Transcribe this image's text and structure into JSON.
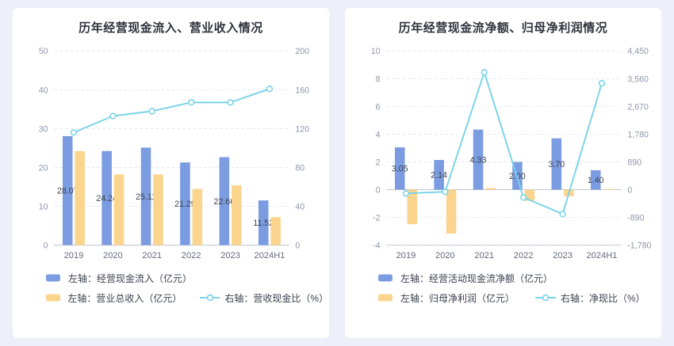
{
  "page": {
    "background": "#edf0f8",
    "card_background": "#ffffff"
  },
  "chart_data": [
    {
      "type": "bar",
      "title": "历年经营现金流入、营业收入情况",
      "categories": [
        "2019",
        "2020",
        "2021",
        "2022",
        "2023",
        "2024H1"
      ],
      "left_axis": {
        "ticks": [
          "0",
          "10",
          "20",
          "30",
          "40",
          "50"
        ]
      },
      "right_axis": {
        "ticks": [
          "0",
          "40",
          "80",
          "120",
          "160",
          "200"
        ]
      },
      "grid": "dashed-horizontal",
      "legend_position": "bottom",
      "legend_rows": [
        [
          0
        ],
        [
          1,
          2
        ]
      ],
      "series": [
        {
          "name": "左轴：经营现金流入（亿元）",
          "type": "bar",
          "axis": "left",
          "color": "#7b9ce1",
          "values": [
            28.07,
            24.24,
            25.11,
            21.29,
            22.66,
            11.52
          ],
          "labels": [
            "28.07",
            "24.24",
            "25.11",
            "21.29",
            "22.66",
            "11.52"
          ]
        },
        {
          "name": "左轴：营业总收入（亿元）",
          "type": "bar",
          "axis": "left",
          "color": "#fbd48e",
          "values": [
            24.2,
            18.2,
            18.2,
            14.5,
            15.4,
            7.2
          ]
        },
        {
          "name": "右轴：营收现金比（%）",
          "type": "line",
          "axis": "right",
          "color": "#78d3e8",
          "values": [
            116,
            133,
            138,
            147,
            147,
            161
          ]
        }
      ]
    },
    {
      "type": "bar",
      "title": "历年经营现金流净额、归母净利润情况",
      "categories": [
        "2019",
        "2020",
        "2021",
        "2022",
        "2023",
        "2024H1"
      ],
      "left_axis": {
        "ticks": [
          "-4",
          "-2",
          "0",
          "2",
          "4",
          "6",
          "8",
          "10"
        ]
      },
      "right_axis": {
        "ticks": [
          "-1,780",
          "-890",
          "0",
          "890",
          "1,780",
          "2,670",
          "3,560",
          "4,450"
        ]
      },
      "grid": "dashed-horizontal",
      "legend_position": "bottom",
      "legend_rows": [
        [
          0
        ],
        [
          1,
          2
        ]
      ],
      "series": [
        {
          "name": "左轴：经营活动现金流净额（亿元）",
          "type": "bar",
          "axis": "left",
          "color": "#7b9ce1",
          "values": [
            3.05,
            2.14,
            4.33,
            2.0,
            3.7,
            1.4
          ],
          "labels": [
            "3.05",
            "2.14",
            "4.33",
            "2.00",
            "3.70",
            "1.40"
          ]
        },
        {
          "name": "左轴：归母净利润（亿元）",
          "type": "bar",
          "axis": "left",
          "color": "#fbd48e",
          "values": [
            -2.49,
            -3.17,
            0.12,
            -0.8,
            -0.47,
            0.04
          ]
        },
        {
          "name": "右轴：净现比（%）",
          "type": "line",
          "axis": "right",
          "color": "#78d3e8",
          "values": [
            -122,
            -68,
            3765,
            -250,
            -780,
            3415
          ]
        }
      ]
    }
  ]
}
